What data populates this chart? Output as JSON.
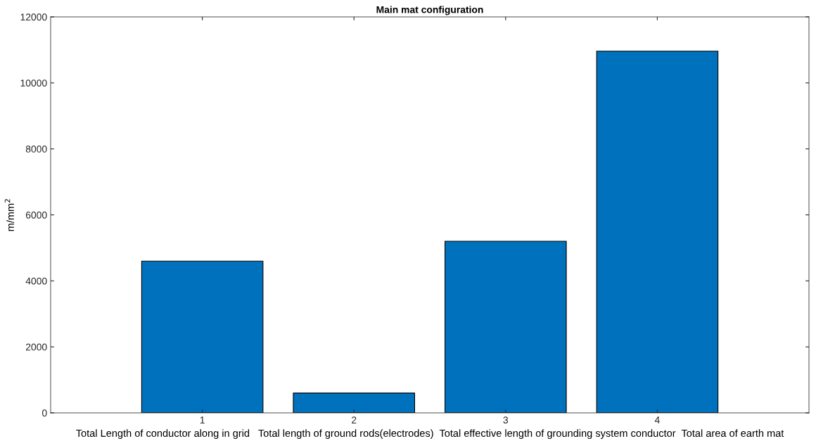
{
  "chart_data": {
    "type": "bar",
    "title": "Main mat configuration",
    "xlabel": "Total Length of conductor along in grid   Total length of ground rods(electrodes)  Total effective length of grounding system conductor  Total area of earth mat",
    "ylabel": "m/mm$^{2}$",
    "x": [
      1,
      2,
      3,
      4
    ],
    "values": [
      4600,
      600,
      5200,
      10960
    ],
    "color": "#0072bd",
    "xlim": [
      0,
      5
    ],
    "xticks": [
      1,
      2,
      3,
      4
    ],
    "ylim": [
      0,
      12000
    ],
    "yticks": [
      0,
      2000,
      4000,
      6000,
      8000,
      10000,
      12000
    ],
    "grid": false,
    "legend": false
  }
}
